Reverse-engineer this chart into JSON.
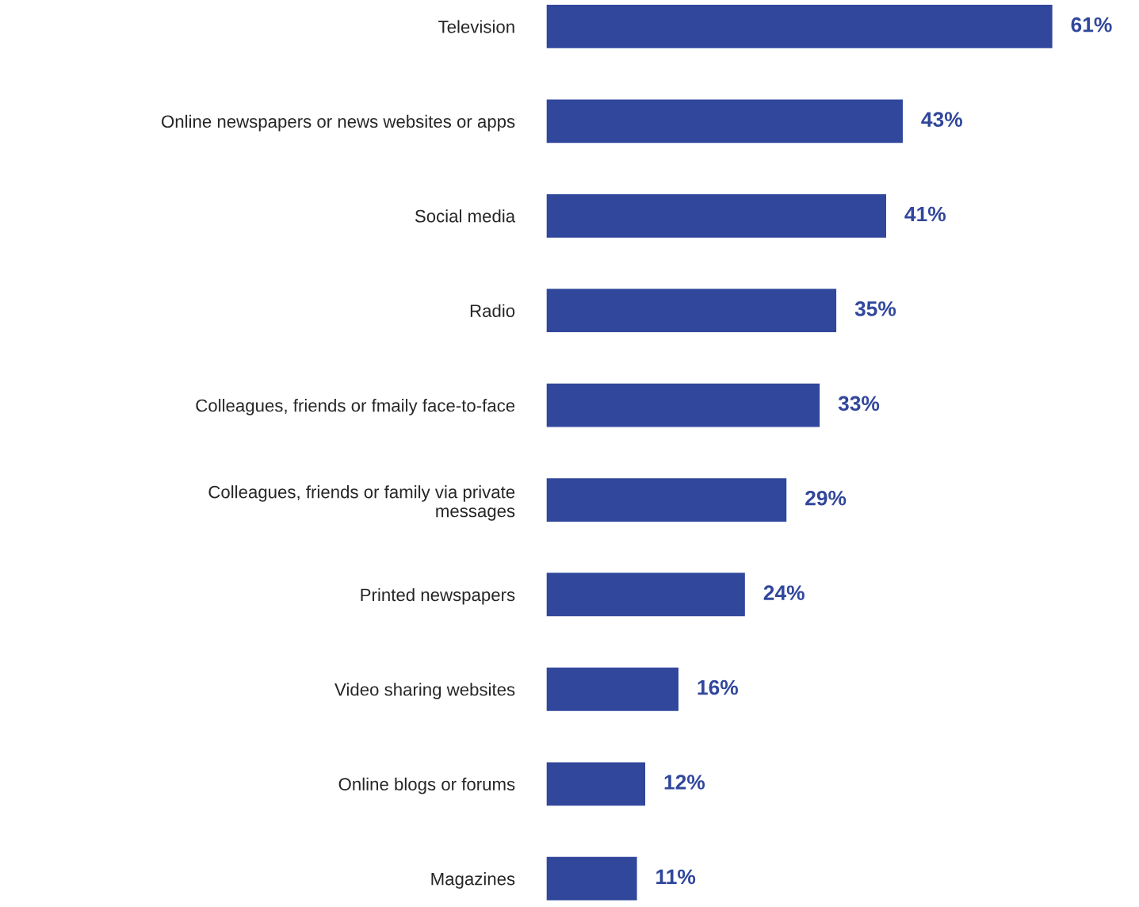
{
  "chart_data": {
    "type": "bar",
    "orientation": "horizontal",
    "categories": [
      "Television",
      "Online newspapers or news websites or apps",
      "Social media",
      "Radio",
      "Colleagues, friends or fmaily face-to-face",
      "Colleagues, friends or family via private\nmessages",
      "Printed newspapers",
      "Video sharing websites",
      "Online blogs or forums",
      "Magazines"
    ],
    "values": [
      61,
      43,
      41,
      35,
      33,
      29,
      24,
      16,
      12,
      11
    ],
    "value_labels": [
      "61%",
      "43%",
      "41%",
      "35%",
      "33%",
      "29%",
      "24%",
      "16%",
      "12%",
      "11%"
    ],
    "color": "#31479c",
    "tick_labels": "y",
    "grid": false,
    "legend": false
  }
}
